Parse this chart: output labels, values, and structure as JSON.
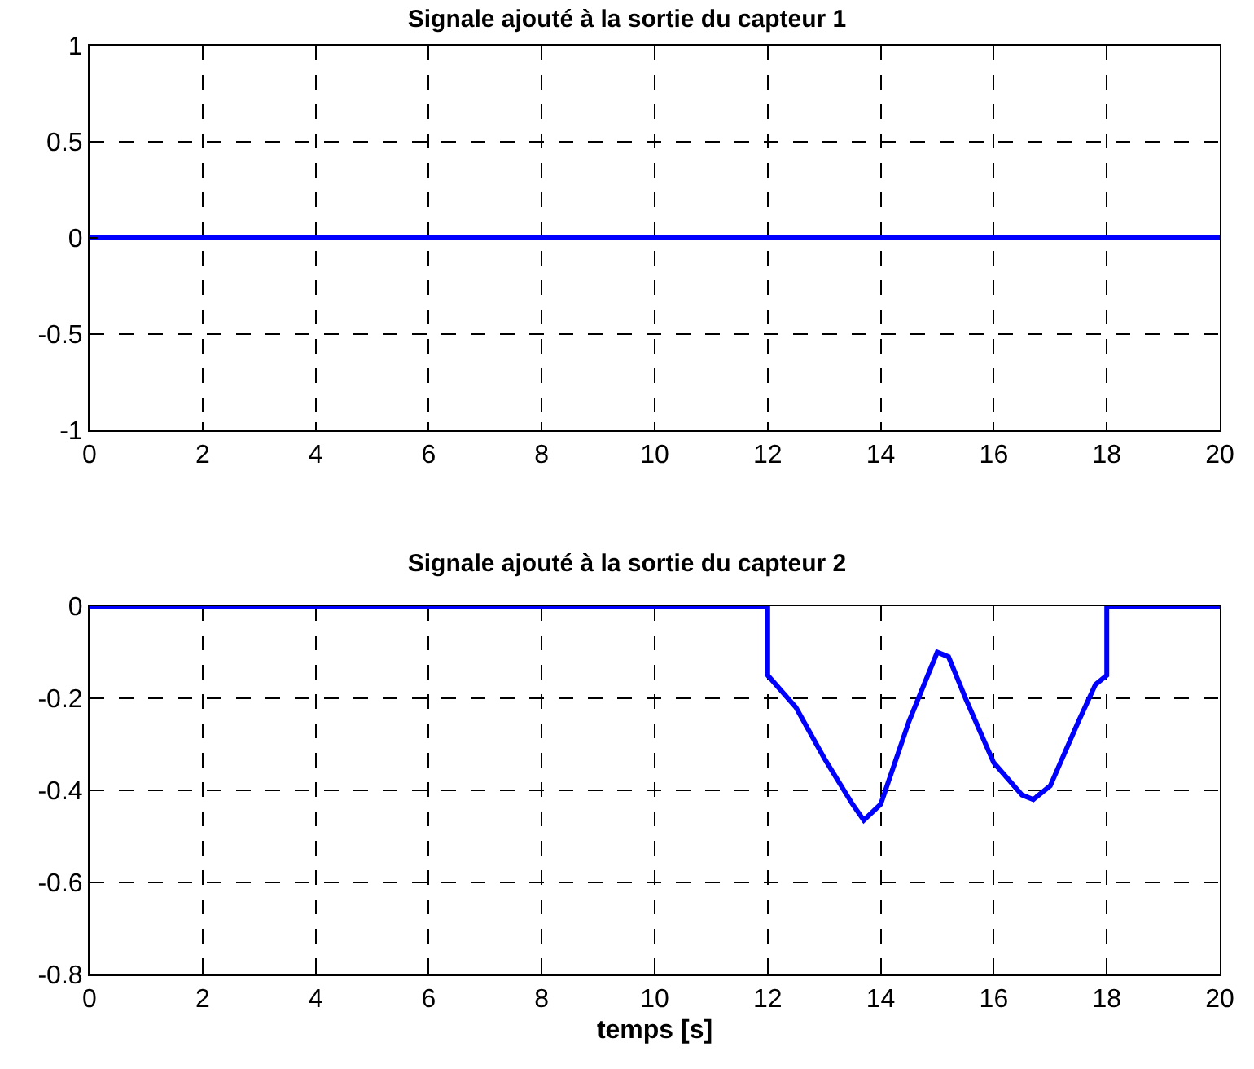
{
  "chart_data": [
    {
      "type": "line",
      "title": "Signale ajouté à la sortie du capteur 1",
      "x": [
        0,
        20
      ],
      "series": [
        {
          "color": "#0000ff",
          "values": [
            0,
            0
          ]
        }
      ],
      "xlim": [
        0,
        20
      ],
      "xticks": [
        0,
        2,
        4,
        6,
        8,
        10,
        12,
        14,
        16,
        18,
        20
      ],
      "ylim": [
        -1,
        1
      ],
      "yticks": [
        -1,
        -0.5,
        0,
        0.5,
        1
      ],
      "grid": true,
      "marker": "none",
      "line_style": "solid"
    },
    {
      "type": "line",
      "title": "Signale ajouté à la sortie du capteur 2",
      "xlabel": "temps [s]",
      "x": [
        0,
        12,
        12,
        12.5,
        13,
        13.5,
        13.7,
        14,
        14.5,
        15,
        15.2,
        15.5,
        16,
        16.5,
        16.7,
        17,
        17.5,
        17.8,
        18,
        18,
        20
      ],
      "series": [
        {
          "color": "#0000ff",
          "values": [
            0,
            0,
            -0.15,
            -0.22,
            -0.33,
            -0.43,
            -0.465,
            -0.43,
            -0.25,
            -0.1,
            -0.11,
            -0.2,
            -0.34,
            -0.41,
            -0.42,
            -0.39,
            -0.25,
            -0.17,
            -0.15,
            0,
            0
          ]
        }
      ],
      "xlim": [
        0,
        20
      ],
      "xticks": [
        0,
        2,
        4,
        6,
        8,
        10,
        12,
        14,
        16,
        18,
        20
      ],
      "ylim": [
        -0.8,
        0
      ],
      "yticks": [
        -0.8,
        -0.6,
        -0.4,
        -0.2,
        0
      ],
      "grid": true,
      "marker": "none",
      "line_style": "solid"
    }
  ]
}
